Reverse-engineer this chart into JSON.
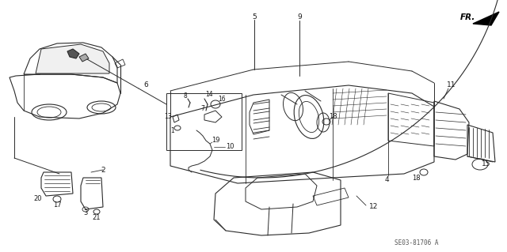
{
  "background_color": "#ffffff",
  "figure_width": 6.4,
  "figure_height": 3.19,
  "dpi": 100,
  "diagram_code": "SE03-81706 A",
  "fr_label": "FR.",
  "line_color": "#2a2a2a",
  "label_color": "#1a1a1a",
  "lw": 0.7
}
